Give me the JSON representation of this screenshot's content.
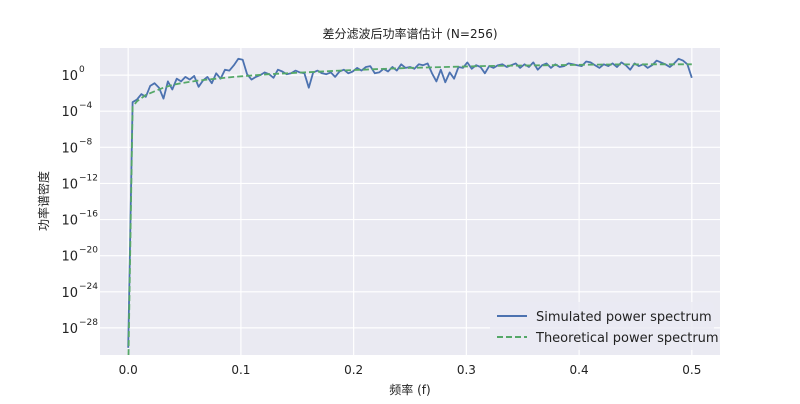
{
  "chart_data": {
    "type": "line",
    "title": "差分滤波后功率谱估计 (N=256)",
    "xlabel": "频率 (f)",
    "ylabel": "功率谱密度",
    "yscale": "log",
    "xlim": [
      -0.025,
      0.525
    ],
    "ylim_exponent": [
      -31,
      3
    ],
    "x_ticks": [
      0.0,
      0.1,
      0.2,
      0.3,
      0.4,
      0.5
    ],
    "x_tick_labels": [
      "0.0",
      "0.1",
      "0.2",
      "0.3",
      "0.4",
      "0.5"
    ],
    "y_tick_exponents": [
      0,
      -4,
      -8,
      -12,
      -16,
      -20,
      -24,
      -28
    ],
    "y_tick_labels": [
      "10",
      "10",
      "10",
      "10",
      "10",
      "10",
      "10",
      "10"
    ],
    "y_tick_sup": [
      "0",
      "−4",
      "−8",
      "−12",
      "−16",
      "−20",
      "−24",
      "−28"
    ],
    "grid": true,
    "legend_position": "bottom-right",
    "series": [
      {
        "name": "Simulated power spectrum",
        "style": "solid",
        "color": "#4c72b0",
        "x": [
          0.0,
          0.0039,
          0.0078,
          0.0117,
          0.0156,
          0.0195,
          0.0234,
          0.0273,
          0.0313,
          0.0352,
          0.0391,
          0.043,
          0.0469,
          0.0508,
          0.0547,
          0.0586,
          0.0625,
          0.0664,
          0.0703,
          0.0742,
          0.0781,
          0.082,
          0.0859,
          0.0898,
          0.0938,
          0.0977,
          0.1016,
          0.1055,
          0.1094,
          0.1133,
          0.1172,
          0.1211,
          0.125,
          0.1289,
          0.1328,
          0.1367,
          0.1406,
          0.1445,
          0.1484,
          0.1523,
          0.1563,
          0.1602,
          0.1641,
          0.168,
          0.1719,
          0.1758,
          0.1797,
          0.1836,
          0.1875,
          0.1914,
          0.1953,
          0.1992,
          0.2031,
          0.207,
          0.2109,
          0.2148,
          0.2188,
          0.2227,
          0.2266,
          0.2305,
          0.2344,
          0.2383,
          0.2422,
          0.2461,
          0.25,
          0.2539,
          0.2578,
          0.2617,
          0.2656,
          0.2695,
          0.2734,
          0.2773,
          0.2813,
          0.2852,
          0.2891,
          0.293,
          0.2969,
          0.3008,
          0.3047,
          0.3086,
          0.3125,
          0.3164,
          0.3203,
          0.3242,
          0.3281,
          0.332,
          0.3359,
          0.3398,
          0.3438,
          0.3477,
          0.3516,
          0.3555,
          0.3594,
          0.3633,
          0.3672,
          0.3711,
          0.375,
          0.3789,
          0.3828,
          0.3867,
          0.3906,
          0.3945,
          0.3984,
          0.4023,
          0.4063,
          0.4102,
          0.4141,
          0.418,
          0.4219,
          0.4258,
          0.4297,
          0.4336,
          0.4375,
          0.4414,
          0.4453,
          0.4492,
          0.4531,
          0.457,
          0.4609,
          0.4648,
          0.4688,
          0.4727,
          0.4766,
          0.4805,
          0.4844,
          0.4883,
          0.4922,
          0.4961,
          0.5
        ],
        "y_exponent": [
          -30.2,
          -3.0,
          -2.7,
          -2.1,
          -2.4,
          -1.2,
          -0.9,
          -1.4,
          -2.6,
          -0.7,
          -1.6,
          -0.4,
          -0.7,
          -0.2,
          -0.5,
          -0.1,
          -1.3,
          -0.6,
          -0.2,
          -0.9,
          0.2,
          -0.4,
          0.6,
          0.5,
          1.1,
          1.8,
          1.7,
          0.1,
          -0.5,
          -0.2,
          0.0,
          0.3,
          0.1,
          -0.3,
          0.6,
          0.4,
          0.1,
          0.2,
          0.5,
          0.3,
          0.2,
          -1.4,
          0.3,
          0.5,
          0.2,
          0.1,
          0.3,
          -0.2,
          0.4,
          0.6,
          0.2,
          0.4,
          0.8,
          0.5,
          0.9,
          1.0,
          0.2,
          0.3,
          0.7,
          0.4,
          0.9,
          0.5,
          1.2,
          0.8,
          0.9,
          0.7,
          1.2,
          1.1,
          1.3,
          0.2,
          -0.7,
          0.6,
          -0.8,
          0.3,
          -0.4,
          0.9,
          0.8,
          1.4,
          0.7,
          1.1,
          0.9,
          0.2,
          1.0,
          0.8,
          1.1,
          1.2,
          0.9,
          1.1,
          1.3,
          0.8,
          1.2,
          0.9,
          1.4,
          0.6,
          1.1,
          1.3,
          0.8,
          1.2,
          0.9,
          1.0,
          1.3,
          1.2,
          1.1,
          1.0,
          1.5,
          1.4,
          1.1,
          0.8,
          1.2,
          1.0,
          1.3,
          0.9,
          1.4,
          1.1,
          0.6,
          1.3,
          1.0,
          1.2,
          0.8,
          1.1,
          1.6,
          1.4,
          1.2,
          0.9,
          1.3,
          1.8,
          1.6,
          1.2,
          -0.3
        ]
      },
      {
        "name": "Theoretical power spectrum",
        "style": "dashed",
        "color": "#55a868",
        "x": [
          0.0,
          0.0039,
          0.0078,
          0.0156,
          0.0234,
          0.0313,
          0.0391,
          0.0469,
          0.0625,
          0.0781,
          0.0938,
          0.1094,
          0.125,
          0.1563,
          0.1875,
          0.2188,
          0.25,
          0.2813,
          0.3125,
          0.3438,
          0.375,
          0.4063,
          0.4375,
          0.4688,
          0.5
        ],
        "y_exponent": [
          -33,
          -3.5,
          -2.9,
          -2.2,
          -1.8,
          -1.4,
          -1.1,
          -0.9,
          -0.6,
          -0.4,
          -0.2,
          -0.05,
          0.1,
          0.3,
          0.5,
          0.65,
          0.8,
          0.9,
          1.0,
          1.05,
          1.1,
          1.15,
          1.18,
          1.2,
          1.2
        ]
      }
    ]
  }
}
